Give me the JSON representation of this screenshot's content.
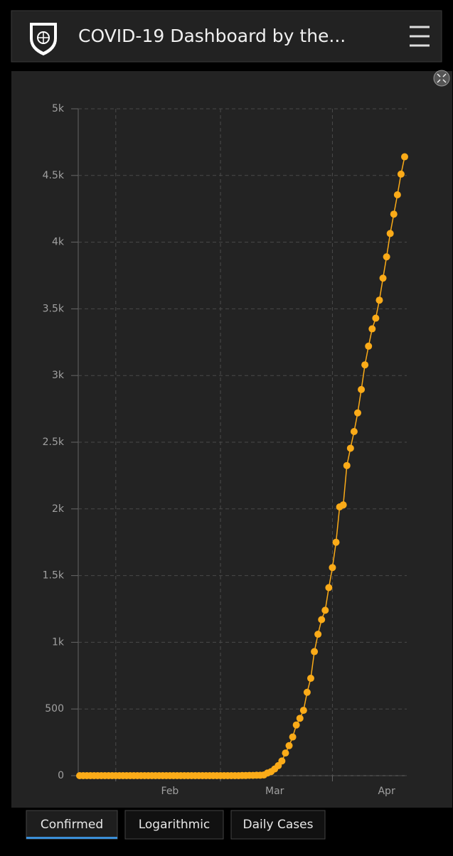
{
  "header": {
    "title": "COVID-19 Dashboard by the..."
  },
  "tabs": [
    "Confirmed",
    "Logarithmic",
    "Daily Cases"
  ],
  "chart_data": {
    "type": "line",
    "color": "#fbab18",
    "grid": true,
    "categories": [
      null,
      null,
      null,
      null,
      null,
      null,
      null,
      null,
      null,
      null,
      null,
      null,
      null,
      null,
      null,
      null,
      null,
      null,
      null,
      null,
      null,
      null,
      null,
      null,
      null,
      "Feb",
      null,
      null,
      null,
      null,
      null,
      null,
      null,
      null,
      null,
      null,
      null,
      null,
      null,
      null,
      null,
      null,
      null,
      null,
      null,
      null,
      null,
      null,
      null,
      null,
      null,
      null,
      null,
      null,
      "Mar",
      null,
      null,
      null,
      null,
      null,
      null,
      null,
      null,
      null,
      null,
      null,
      null,
      null,
      null,
      null,
      null,
      null,
      null,
      null,
      null,
      null,
      null,
      null,
      null,
      null,
      null,
      null,
      null,
      null,
      null,
      "Apr",
      null,
      null,
      null,
      null,
      null
    ],
    "values": [
      0,
      0,
      0,
      0,
      0,
      0,
      0,
      0,
      0,
      0,
      0,
      0,
      0,
      0,
      0,
      0,
      0,
      0,
      0,
      0,
      0,
      0,
      0,
      0,
      0,
      0,
      0,
      0,
      0,
      0,
      0,
      0,
      0,
      0,
      0,
      0,
      0,
      0,
      0,
      0,
      0,
      0,
      0,
      0,
      0,
      1,
      1,
      2,
      2,
      3,
      3,
      5,
      20,
      30,
      50,
      75,
      110,
      170,
      225,
      290,
      380,
      430,
      490,
      625,
      730,
      930,
      1060,
      1170,
      1240,
      1410,
      1560,
      1750,
      2015,
      2030,
      2325,
      2455,
      2580,
      2720,
      2895,
      3080,
      3220,
      3350,
      3430,
      3565,
      3730,
      3890,
      4065,
      4210,
      4355,
      4510,
      4640
    ],
    "ylim": [
      0,
      5000
    ],
    "yticks": [
      0,
      500,
      {
        "value": 1000,
        "label": "1k"
      },
      {
        "value": 1500,
        "label": "1.5k"
      },
      {
        "value": 2000,
        "label": "2k"
      },
      {
        "value": 2500,
        "label": "2.5k"
      },
      {
        "value": 3000,
        "label": "3k"
      },
      {
        "value": 3500,
        "label": "3.5k"
      },
      {
        "value": 4000,
        "label": "4k"
      },
      {
        "value": 4500,
        "label": "4.5k"
      },
      {
        "value": 5000,
        "label": "5k"
      }
    ]
  }
}
